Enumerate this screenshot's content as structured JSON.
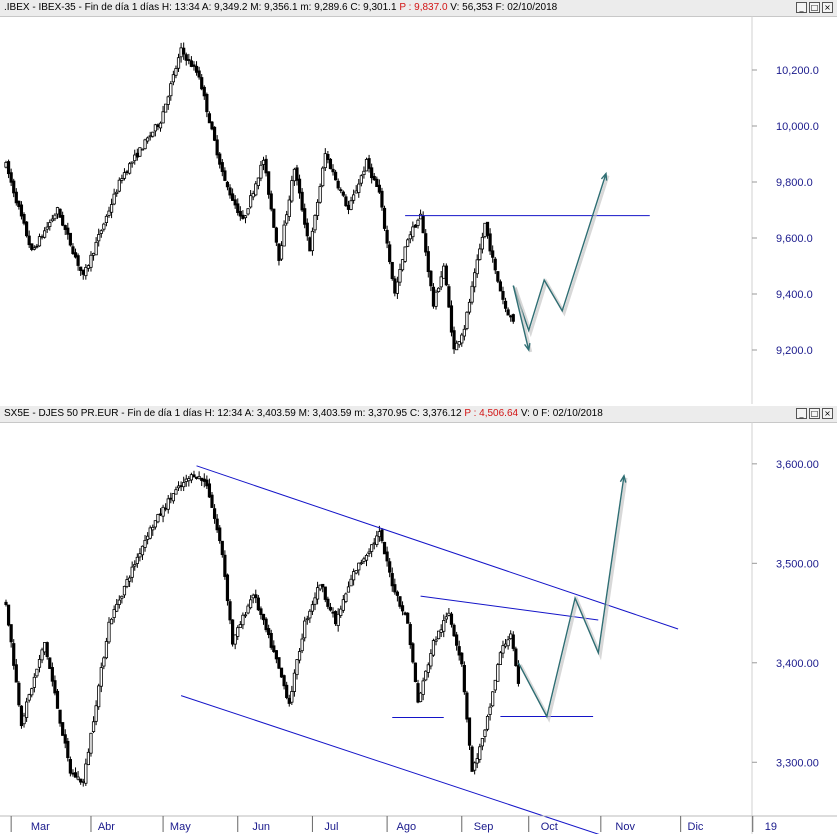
{
  "top_header": {
    "symbol": ".IBEX - IBEX-35 - Fin de día 1 días",
    "h": "H: 13:34",
    "a": "A: 9,349.2",
    "m": "M: 9,356.1",
    "mn": "m: 9,289.6",
    "c": "C: 9,301.1",
    "p": "P : 9,837.0",
    "v": "V: 56,353",
    "f": "F: 02/10/2018"
  },
  "bottom_header": {
    "symbol": "SX5E - DJES 50 PR.EUR - Fin de día 1 días",
    "h": "H: 12:34",
    "a": "A: 3,403.59",
    "m": "M: 3,403.59",
    "mn": "m: 3,370.95",
    "c": "C: 3,376.12",
    "p": "P : 4,506.64",
    "v": "V: 0",
    "f": "F: 02/10/2018"
  },
  "window_buttons": {
    "minimize": "_",
    "restore": "□",
    "close": "×"
  },
  "colors": {
    "axis_label": "#1a1a8c",
    "trend": "#1414c8",
    "projection": "#2f6e73",
    "candle": "#000000"
  },
  "chart_data": [
    {
      "type": "candlestick",
      "title": ".IBEX - IBEX-35",
      "ylim": [
        9050,
        10350
      ],
      "yticks": [
        9200,
        9400,
        9600,
        9800,
        10000,
        10200
      ],
      "ytick_labels": [
        "9,200.0",
        "9,400.0",
        "9,600.0",
        "9,800.0",
        "10,000.0",
        "10,200.0"
      ],
      "anchors": [
        {
          "d": 0,
          "v": 9860
        },
        {
          "d": 10,
          "v": 9550
        },
        {
          "d": 20,
          "v": 9700
        },
        {
          "d": 30,
          "v": 9460
        },
        {
          "d": 45,
          "v": 9820
        },
        {
          "d": 60,
          "v": 10020
        },
        {
          "d": 68,
          "v": 10270
        },
        {
          "d": 75,
          "v": 10180
        },
        {
          "d": 80,
          "v": 9980
        },
        {
          "d": 85,
          "v": 9800
        },
        {
          "d": 92,
          "v": 9660
        },
        {
          "d": 100,
          "v": 9880
        },
        {
          "d": 106,
          "v": 9530
        },
        {
          "d": 112,
          "v": 9850
        },
        {
          "d": 118,
          "v": 9560
        },
        {
          "d": 124,
          "v": 9900
        },
        {
          "d": 133,
          "v": 9700
        },
        {
          "d": 140,
          "v": 9870
        },
        {
          "d": 145,
          "v": 9760
        },
        {
          "d": 151,
          "v": 9400
        },
        {
          "d": 156,
          "v": 9600
        },
        {
          "d": 161,
          "v": 9680
        },
        {
          "d": 166,
          "v": 9360
        },
        {
          "d": 170,
          "v": 9500
        },
        {
          "d": 174,
          "v": 9200
        },
        {
          "d": 178,
          "v": 9280
        },
        {
          "d": 186,
          "v": 9650
        },
        {
          "d": 190,
          "v": 9480
        },
        {
          "d": 194,
          "v": 9350
        },
        {
          "d": 197,
          "v": 9301
        }
      ],
      "lines": [
        {
          "style": "trend",
          "from": [
            155,
            9680
          ],
          "to": [
            250,
            9680
          ]
        }
      ],
      "projection": [
        [
          197,
          9430
        ],
        [
          203,
          9270
        ],
        [
          209,
          9450
        ],
        [
          216,
          9340
        ],
        [
          233,
          9830
        ]
      ],
      "projection_alt": [
        [
          197,
          9430
        ],
        [
          203,
          9200
        ]
      ]
    },
    {
      "type": "candlestick",
      "title": "SX5E - DJES 50 PR.EUR",
      "ylim": [
        3250,
        3630
      ],
      "yticks": [
        3300,
        3400,
        3500,
        3600
      ],
      "ytick_labels": [
        "3,300.00",
        "3,400.00",
        "3,500.00",
        "3,600.00"
      ],
      "anchors": [
        {
          "d": 0,
          "v": 3460
        },
        {
          "d": 6,
          "v": 3340
        },
        {
          "d": 15,
          "v": 3420
        },
        {
          "d": 25,
          "v": 3290
        },
        {
          "d": 30,
          "v": 3280
        },
        {
          "d": 40,
          "v": 3440
        },
        {
          "d": 55,
          "v": 3530
        },
        {
          "d": 65,
          "v": 3570
        },
        {
          "d": 73,
          "v": 3590
        },
        {
          "d": 78,
          "v": 3580
        },
        {
          "d": 84,
          "v": 3510
        },
        {
          "d": 88,
          "v": 3420
        },
        {
          "d": 96,
          "v": 3470
        },
        {
          "d": 104,
          "v": 3410
        },
        {
          "d": 110,
          "v": 3360
        },
        {
          "d": 116,
          "v": 3440
        },
        {
          "d": 122,
          "v": 3480
        },
        {
          "d": 128,
          "v": 3440
        },
        {
          "d": 135,
          "v": 3490
        },
        {
          "d": 145,
          "v": 3530
        },
        {
          "d": 150,
          "v": 3480
        },
        {
          "d": 156,
          "v": 3440
        },
        {
          "d": 160,
          "v": 3360
        },
        {
          "d": 166,
          "v": 3420
        },
        {
          "d": 172,
          "v": 3450
        },
        {
          "d": 177,
          "v": 3400
        },
        {
          "d": 181,
          "v": 3290
        },
        {
          "d": 186,
          "v": 3330
        },
        {
          "d": 192,
          "v": 3410
        },
        {
          "d": 196,
          "v": 3430
        },
        {
          "d": 199,
          "v": 3376
        }
      ],
      "lines": [
        {
          "style": "trend",
          "from": [
            74,
            3598
          ],
          "to": [
            261,
            3434
          ]
        },
        {
          "style": "trend",
          "from": [
            68,
            3367
          ],
          "to": [
            232,
            3226
          ]
        },
        {
          "style": "trend",
          "from": [
            161,
            3467
          ],
          "to": [
            230,
            3443
          ]
        },
        {
          "style": "trend",
          "from": [
            150,
            3345
          ],
          "to": [
            170,
            3345
          ]
        },
        {
          "style": "trend",
          "from": [
            192,
            3346
          ],
          "to": [
            228,
            3346
          ]
        }
      ],
      "projection": [
        [
          199,
          3400
        ],
        [
          210,
          3346
        ],
        [
          221,
          3465
        ],
        [
          230,
          3410
        ],
        [
          240,
          3588
        ]
      ]
    }
  ],
  "x_axis": {
    "labels": [
      {
        "d": 5,
        "text": "Mar"
      },
      {
        "d": 31,
        "text": "Abr"
      },
      {
        "d": 59,
        "text": "May"
      },
      {
        "d": 91,
        "text": "Jun"
      },
      {
        "d": 119,
        "text": "Jul"
      },
      {
        "d": 147,
        "text": "Ago"
      },
      {
        "d": 177,
        "text": "Sep"
      },
      {
        "d": 203,
        "text": "Oct"
      },
      {
        "d": 232,
        "text": "Nov"
      },
      {
        "d": 260,
        "text": "Dic"
      },
      {
        "d": 290,
        "text": "19"
      }
    ],
    "ticks": [
      2,
      33,
      61,
      90,
      119,
      148,
      177,
      203,
      231,
      262,
      290
    ]
  }
}
